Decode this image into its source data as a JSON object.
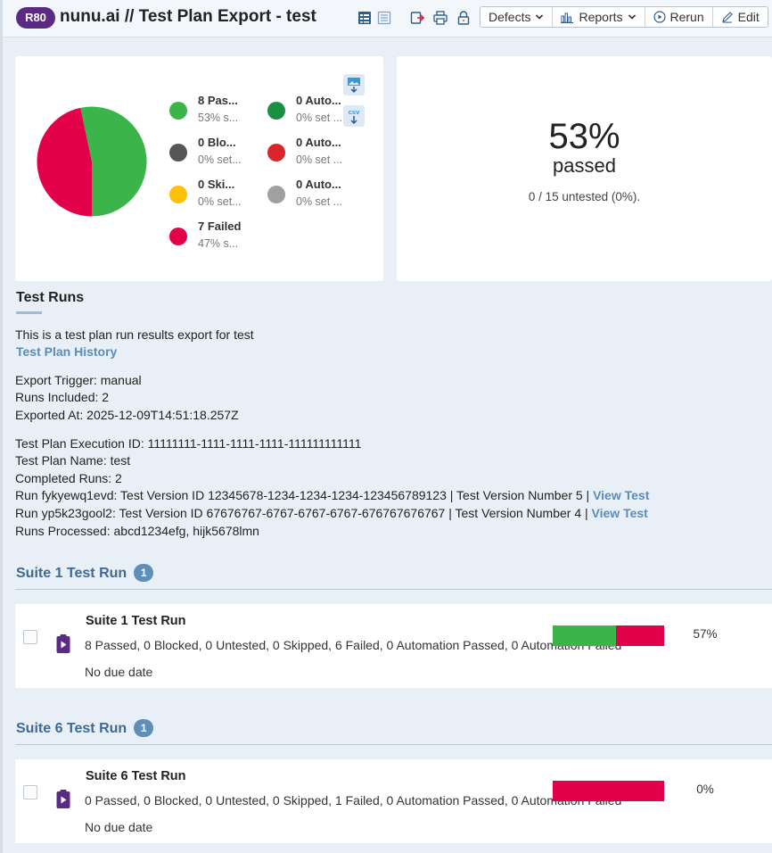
{
  "header": {
    "run_id": "R80",
    "title": "nunu.ai // Test Plan Export - test",
    "toolbar": {
      "defects": "Defects",
      "reports": "Reports",
      "rerun": "Rerun",
      "edit": "Edit"
    }
  },
  "summary": {
    "chart_data": {
      "type": "pie",
      "slices": [
        {
          "name": "Passed",
          "value": 8,
          "color": "#3bb54a"
        },
        {
          "name": "Failed",
          "value": 7,
          "color": "#e2004a"
        }
      ]
    },
    "legend": [
      {
        "name": "8 Pas...",
        "sub": "53% s...",
        "color": "#3bb54a"
      },
      {
        "name": "0 Blo...",
        "sub": "0% set...",
        "color": "#555555"
      },
      {
        "name": "0 Ski...",
        "sub": "0% set...",
        "color": "#ffc107"
      },
      {
        "name": "7 Failed",
        "sub": "47% s...",
        "color": "#e2004a"
      },
      {
        "name": "0 Auto...",
        "sub": "0% set ...",
        "color": "#1a8f43"
      },
      {
        "name": "0 Auto...",
        "sub": "0% set ...",
        "color": "#d9262c"
      },
      {
        "name": "0 Auto...",
        "sub": "0% set ...",
        "color": "#a0a0a0"
      }
    ],
    "pass_percent": "53%",
    "pass_word": "passed",
    "untested_text": "0 / 15 untested (0%).",
    "csv_label": "csv"
  },
  "test_runs": {
    "title": "Test Runs",
    "description": "This is a test plan run results export for test",
    "history_link": "Test Plan History",
    "export_trigger": "Export Trigger: manual",
    "runs_included": "Runs Included: 2",
    "exported_at": "Exported At: 2025-12-09T14:51:18.257Z",
    "execution_id": "Test Plan Execution ID: 11111111-1111-1111-1111-111111111111",
    "plan_name": "Test Plan Name: test",
    "completed_runs": "Completed Runs: 2",
    "run1_text": "Run fykyewq1evd: Test Version ID 12345678-1234-1234-1234-123456789123 | Test Version Number 5 | ",
    "run2_text": "Run yp5k23gool2: Test Version ID 67676767-6767-6767-6767-676767676767 | Test Version Number 4 | ",
    "view_test": "View Test",
    "runs_processed": "Runs Processed: abcd1234efg, hijk5678lmn"
  },
  "suites": [
    {
      "heading": "Suite 1 Test Run",
      "count": "1",
      "run_name": "Suite 1 Test Run",
      "stats": "8 Passed, 0 Blocked, 0 Untested, 0 Skipped, 6 Failed, 0 Automation Passed, 0 Automation Failed",
      "due": "No due date",
      "pass_fraction": 0.57,
      "fail_fraction": 0.43,
      "percent": "57%"
    },
    {
      "heading": "Suite 6 Test Run",
      "count": "1",
      "run_name": "Suite 6 Test Run",
      "stats": "0 Passed, 0 Blocked, 0 Untested, 0 Skipped, 1 Failed, 0 Automation Passed, 0 Automation Failed",
      "due": "No due date",
      "pass_fraction": 0,
      "fail_fraction": 1,
      "percent": "0%"
    }
  ]
}
